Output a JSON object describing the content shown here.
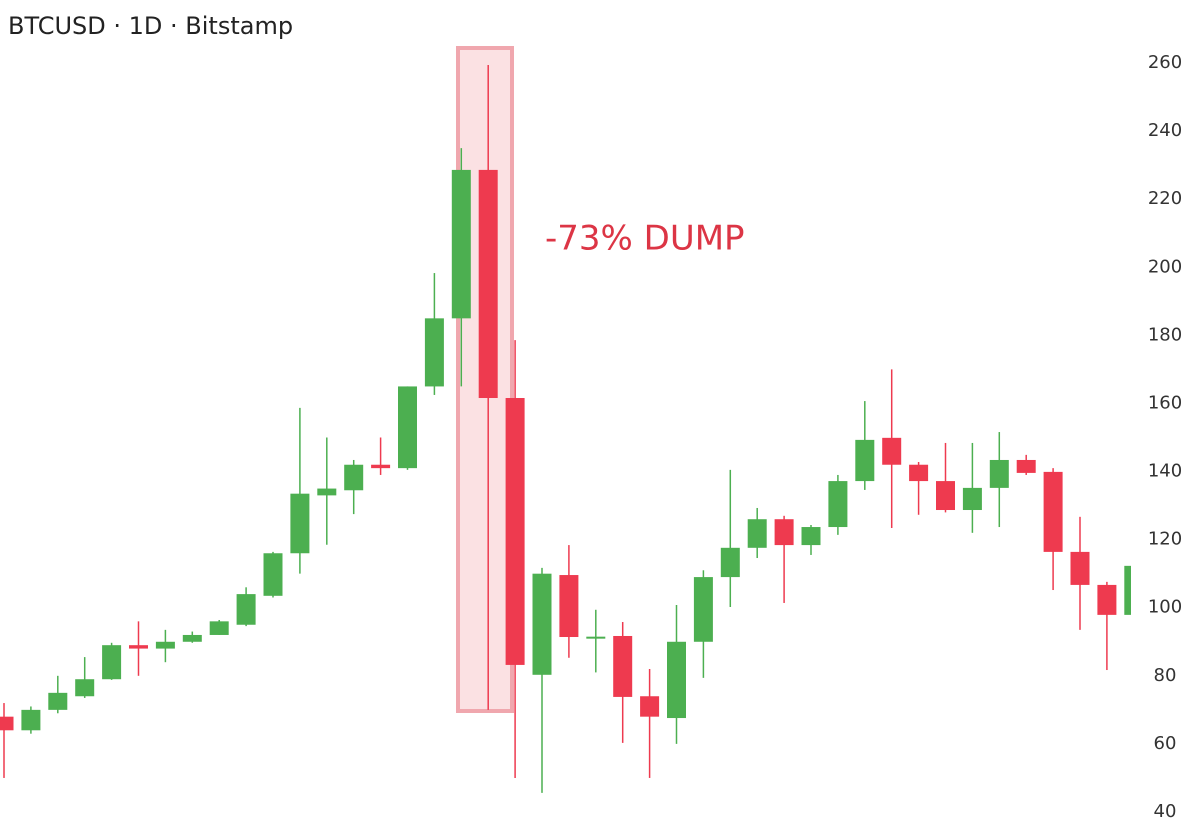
{
  "chart_data": {
    "type": "candlestick",
    "title": "BTCUSD · 1D · Bitstamp",
    "annotation": {
      "text": "-73% DUMP",
      "color": "#dc3545"
    },
    "up_color": "#4caf50",
    "down_color": "#ee3a4f",
    "grid": false,
    "ylim": [
      40,
      260
    ],
    "yticks": [
      40,
      60,
      80,
      100,
      120,
      140,
      160,
      180,
      200,
      220,
      240,
      260
    ],
    "open": [
      68,
      64,
      70,
      74,
      79,
      89,
      88,
      90,
      92,
      95,
      103.5,
      116,
      133,
      134.5,
      142,
      141,
      165,
      185,
      228.6,
      161.6,
      80.3,
      109.6,
      91,
      91.7,
      74,
      67.6,
      90,
      109,
      117.6,
      126,
      118.4,
      123.7,
      137.2,
      149.9,
      142,
      137.2,
      128.7,
      135.2,
      143.4,
      139.9,
      116.4,
      106.7,
      97.9
    ],
    "high": [
      72,
      71,
      80,
      85.5,
      89.7,
      96,
      93.5,
      93,
      96.4,
      106,
      116.4,
      158.7,
      150,
      143.4,
      150,
      165,
      198.3,
      235,
      259.4,
      178.6,
      111.7,
      118.4,
      99.4,
      95.8,
      82,
      100.8,
      111,
      140.5,
      129.3,
      127,
      124.3,
      139,
      160.7,
      170,
      142.8,
      148.4,
      148.4,
      151.6,
      144.9,
      141,
      126.7,
      107.6,
      112.3
    ],
    "low": [
      50,
      63,
      69,
      73.5,
      78.8,
      80,
      84,
      89.7,
      92,
      94.6,
      103,
      110,
      118.5,
      127.5,
      139,
      140.5,
      162.5,
      165,
      70,
      50,
      45.6,
      85.3,
      81,
      60.3,
      50,
      60,
      79.4,
      100.2,
      114.6,
      101.4,
      115.5,
      121.4,
      134.6,
      123.4,
      127.3,
      128,
      122,
      123.7,
      139,
      105.2,
      93.5,
      81.7,
      97.9
    ],
    "close": [
      64,
      70,
      75,
      79,
      89,
      88,
      90,
      92,
      96,
      104,
      116,
      133.5,
      135,
      142,
      141,
      165,
      185,
      228.6,
      161.6,
      83.2,
      110,
      91.4,
      91.5,
      73.8,
      68,
      90,
      109,
      117.6,
      126,
      118.4,
      123.7,
      137.2,
      149.3,
      142,
      137.2,
      128.7,
      135.2,
      143.4,
      139.6,
      116.4,
      106.7,
      97.9,
      112.3
    ]
  }
}
